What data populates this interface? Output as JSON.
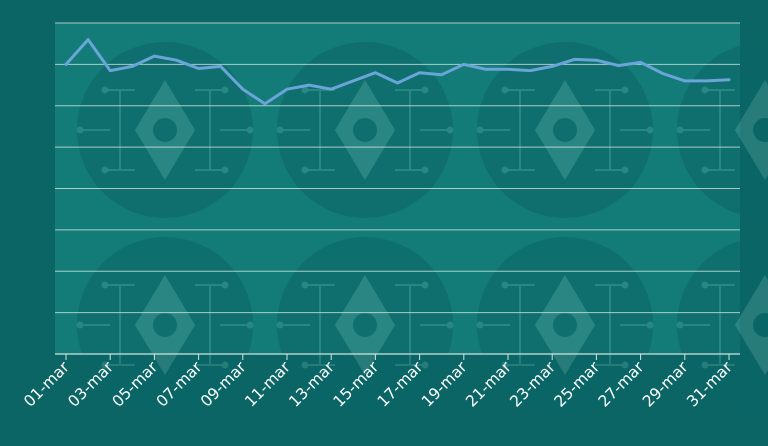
{
  "colors": {
    "page_bg": "#0c6565",
    "plot_bg": "#137b78",
    "gridline": "#cfe3e0",
    "line": "#6aa4d8",
    "tick_label": "#ffffff",
    "watermark": "#0a6767"
  },
  "chart_data": {
    "type": "line",
    "title": "",
    "xlabel": "",
    "ylabel": "",
    "grid": true,
    "legend": "none",
    "y_tick_labels_visible": false,
    "watermark": "ethereum-logo-pattern",
    "ylim": [
      0,
      8
    ],
    "ytick_count": 8,
    "x": [
      "01-mar",
      "02-mar",
      "03-mar",
      "04-mar",
      "05-mar",
      "06-mar",
      "07-mar",
      "08-mar",
      "09-mar",
      "10-mar",
      "11-mar",
      "12-mar",
      "13-mar",
      "14-mar",
      "15-mar",
      "16-mar",
      "17-mar",
      "18-mar",
      "19-mar",
      "20-mar",
      "21-mar",
      "22-mar",
      "23-mar",
      "24-mar",
      "25-mar",
      "26-mar",
      "27-mar",
      "28-mar",
      "29-mar",
      "30-mar",
      "31-mar"
    ],
    "xticks": [
      "01-mar",
      "03-mar",
      "05-mar",
      "07-mar",
      "09-mar",
      "11-mar",
      "13-mar",
      "15-mar",
      "17-mar",
      "19-mar",
      "21-mar",
      "23-mar",
      "25-mar",
      "27-mar",
      "29-mar",
      "31-mar"
    ],
    "series": [
      {
        "values": [
          7.0,
          7.6,
          6.85,
          6.95,
          7.2,
          7.1,
          6.9,
          6.95,
          6.4,
          6.05,
          6.4,
          6.5,
          6.4,
          6.6,
          6.8,
          6.55,
          6.8,
          6.75,
          7.0,
          6.88,
          6.88,
          6.85,
          6.95,
          7.12,
          7.1,
          6.97,
          7.05,
          6.78,
          6.6,
          6.6,
          6.63
        ]
      }
    ]
  }
}
